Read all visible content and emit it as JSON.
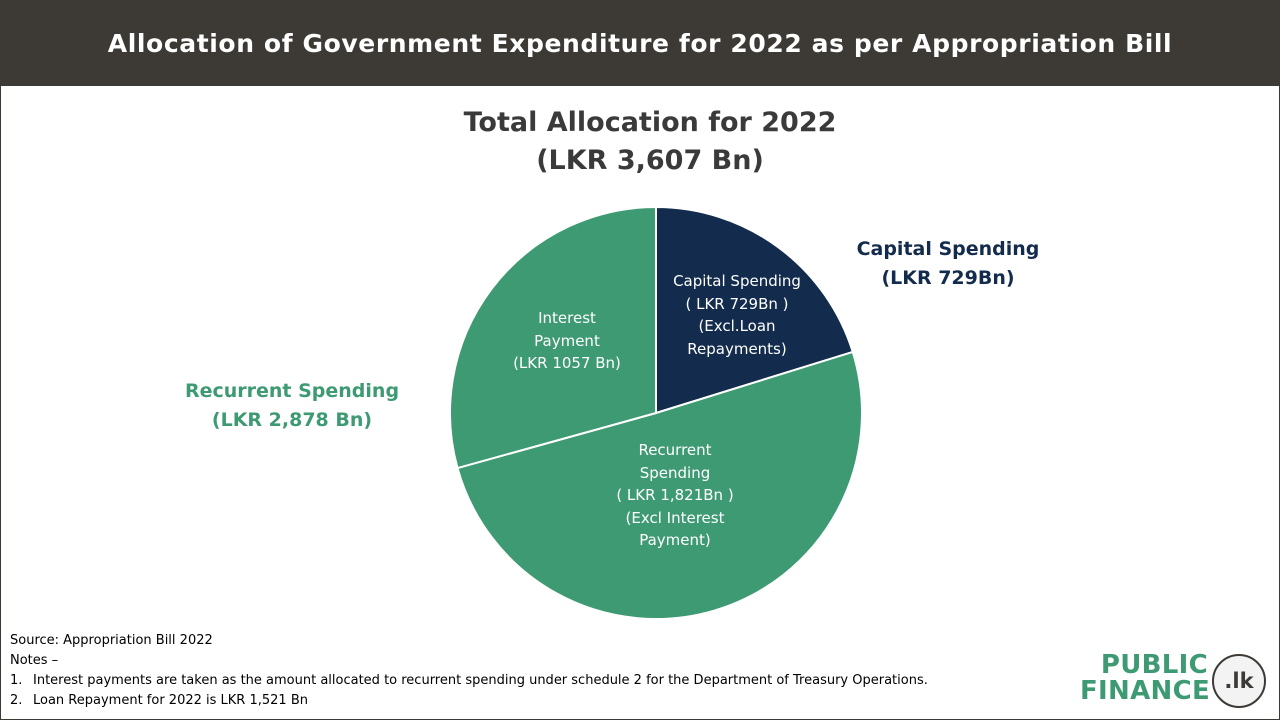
{
  "header": {
    "title": "Allocation of Government Expenditure for 2022 as per Appropriation Bill"
  },
  "chart_data": {
    "type": "pie",
    "title_line1": "Total Allocation for 2022",
    "title_line2": "(LKR 3,607 Bn)",
    "slices": [
      {
        "key": "capital",
        "value": 729,
        "color": "#132b4c",
        "label": "Capital Spending\n( LKR 729Bn )\n(Excl.Loan\nRepayments)"
      },
      {
        "key": "recurrent",
        "value": 1821,
        "color": "#3e9a73",
        "label": "Recurrent\nSpending\n( LKR 1,821Bn )\n(Excl Interest\nPayment)"
      },
      {
        "key": "interest",
        "value": 1057,
        "color": "#3e9a73",
        "label": "Interest\nPayment\n(LKR 1057 Bn)"
      }
    ],
    "groups": [
      {
        "name": "Capital Spending",
        "amount": "(LKR 729Bn)",
        "color": "#132b4c"
      },
      {
        "name": "Recurrent Spending",
        "amount": "(LKR 2,878 Bn)",
        "color": "#3e9a73"
      }
    ],
    "total": 3607
  },
  "footer": {
    "source": "Source: Appropriation Bill 2022",
    "notes_heading": "Notes –",
    "notes": [
      {
        "num": "1.",
        "text": "Interest payments are taken as the amount allocated to recurrent spending under schedule 2 for the Department of Treasury Operations."
      },
      {
        "num": "2.",
        "text": "Loan Repayment for 2022 is LKR 1,521 Bn"
      }
    ]
  },
  "logo": {
    "line1": "PUBLIC",
    "line2": "FINANCE",
    "badge": ".lk",
    "icon": "publicfinance-logo-icon"
  }
}
